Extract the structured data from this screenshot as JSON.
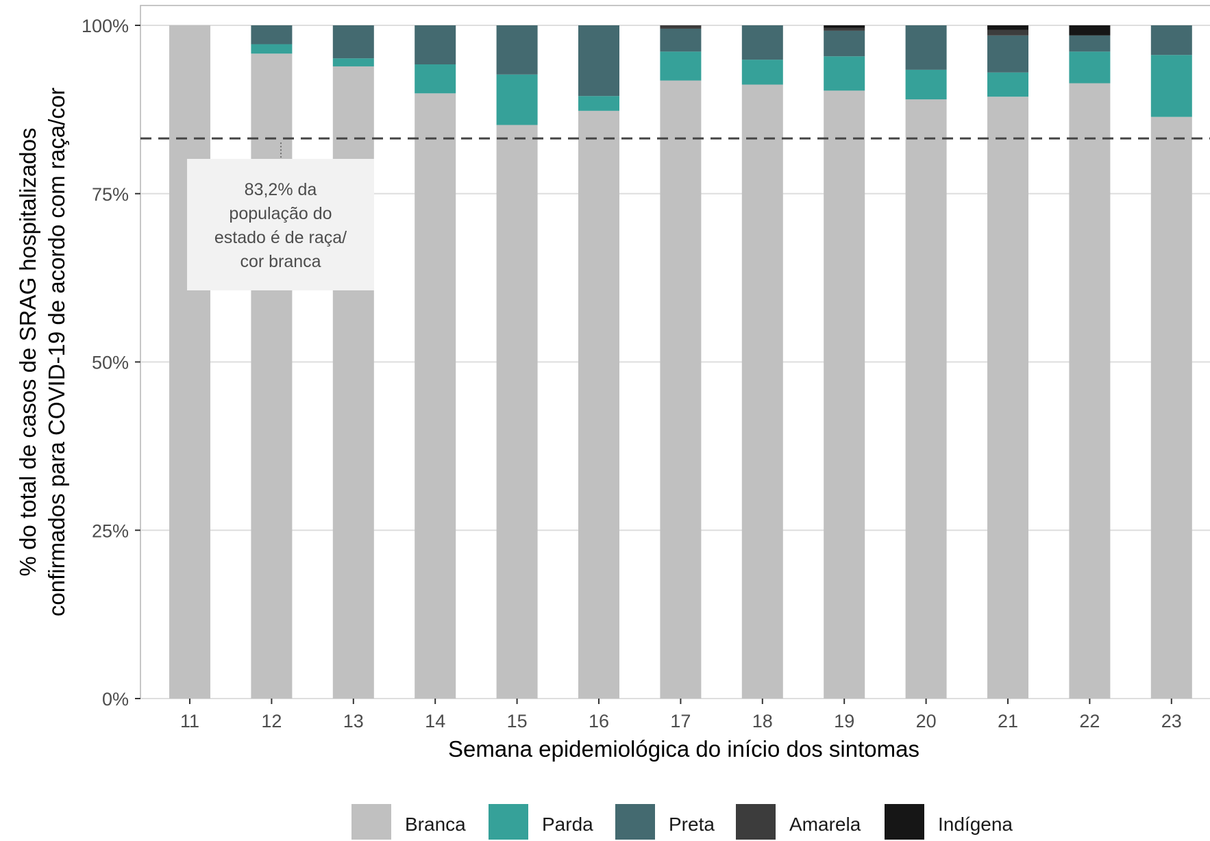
{
  "chart_data": {
    "type": "bar",
    "stacked": true,
    "title": "",
    "xlabel": "Semana epidemiológica do início dos sintomas",
    "ylabel_lines": [
      "% do total de casos de SRAG hospitalizados",
      "confirmados para COVID-19 de acordo com raça/cor"
    ],
    "categories": [
      "11",
      "12",
      "13",
      "14",
      "15",
      "16",
      "17",
      "18",
      "19",
      "20",
      "21",
      "22",
      "23"
    ],
    "ylim": [
      0,
      100
    ],
    "yticks": [
      0,
      25,
      50,
      75,
      100
    ],
    "ytick_labels": [
      "0%",
      "25%",
      "50%",
      "75%",
      "100%"
    ],
    "grid": true,
    "legend_position": "bottom",
    "series": [
      {
        "name": "Branca",
        "color": "#c0c0c0",
        "values": [
          100,
          95.8,
          93.9,
          89.9,
          85.2,
          87.3,
          91.8,
          91.2,
          90.3,
          89.0,
          89.4,
          91.4,
          86.4
        ]
      },
      {
        "name": "Parda",
        "color": "#36a199",
        "values": [
          0,
          1.4,
          1.2,
          4.3,
          7.5,
          2.2,
          4.3,
          3.7,
          5.1,
          4.4,
          3.6,
          4.7,
          9.2
        ]
      },
      {
        "name": "Preta",
        "color": "#446a70",
        "values": [
          0,
          2.8,
          4.9,
          5.8,
          7.3,
          10.5,
          3.4,
          5.1,
          3.8,
          6.6,
          5.5,
          2.4,
          4.4
        ]
      },
      {
        "name": "Amarela",
        "color": "#3c3c3c",
        "values": [
          0,
          0,
          0,
          0,
          0,
          0,
          0.5,
          0,
          0.4,
          0,
          0.8,
          0,
          0
        ]
      },
      {
        "name": "Indígena",
        "color": "#161616",
        "values": [
          0,
          0,
          0,
          0,
          0,
          0,
          0,
          0,
          0.4,
          0,
          0.7,
          1.5,
          0
        ]
      }
    ],
    "reference_line": {
      "value": 83.2,
      "style": "dashed",
      "annotation_lines": [
        "83,2% da",
        "população do",
        "estado é de raça/",
        "cor branca"
      ]
    }
  }
}
